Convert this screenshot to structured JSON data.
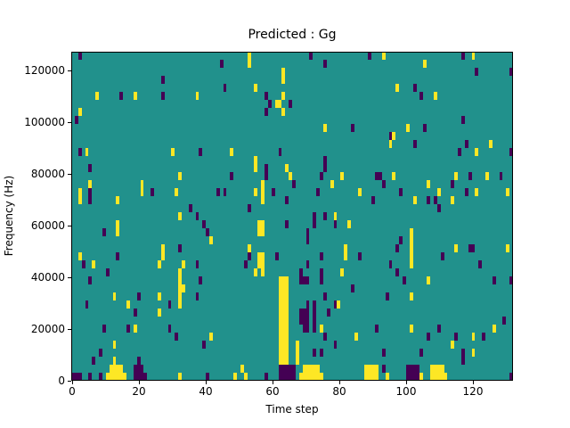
{
  "chart_data": {
    "type": "heatmap",
    "title": "Predicted : Gg",
    "xlabel": "Time step",
    "ylabel": "Frequency (Hz)",
    "x_ticks": [
      0,
      20,
      40,
      60,
      80,
      100,
      120
    ],
    "y_ticks": [
      0,
      20000,
      40000,
      60000,
      80000,
      100000,
      120000
    ],
    "xlim": [
      0,
      132
    ],
    "ylim": [
      0,
      128000
    ],
    "grid": {
      "cols": 128,
      "rows": 41
    },
    "legend": "none",
    "colors": {
      "background": "#21918c",
      "high": "#fde725",
      "low": "#440154",
      "text": "#000000",
      "figure_background": "#ffffff"
    },
    "yellow_cells": [
      [
        7,
        5
      ],
      [
        18,
        5
      ],
      [
        36,
        5
      ],
      [
        2,
        7
      ],
      [
        4,
        12
      ],
      [
        29,
        12
      ],
      [
        51,
        0
      ],
      [
        51,
        1
      ],
      [
        61,
        2
      ],
      [
        61,
        3
      ],
      [
        53,
        4
      ],
      [
        61,
        5
      ],
      [
        59,
        6
      ],
      [
        60,
        6
      ],
      [
        61,
        7
      ],
      [
        73,
        9
      ],
      [
        46,
        12
      ],
      [
        53,
        13
      ],
      [
        90,
        0
      ],
      [
        116,
        0
      ],
      [
        102,
        1
      ],
      [
        94,
        4
      ],
      [
        105,
        5
      ],
      [
        97,
        9
      ],
      [
        93,
        10
      ],
      [
        92,
        11
      ],
      [
        121,
        11
      ],
      [
        117,
        12
      ],
      [
        31,
        15
      ],
      [
        5,
        16
      ],
      [
        20,
        16
      ],
      [
        20,
        17
      ],
      [
        2,
        17
      ],
      [
        2,
        18
      ],
      [
        30,
        17
      ],
      [
        13,
        18
      ],
      [
        31,
        20
      ],
      [
        13,
        21
      ],
      [
        13,
        22
      ],
      [
        40,
        23
      ],
      [
        26,
        24
      ],
      [
        26,
        25
      ],
      [
        2,
        25
      ],
      [
        25,
        26
      ],
      [
        6,
        26
      ],
      [
        32,
        26
      ],
      [
        53,
        14
      ],
      [
        62,
        14
      ],
      [
        63,
        15
      ],
      [
        78,
        15
      ],
      [
        53,
        17
      ],
      [
        83,
        17
      ],
      [
        55,
        16
      ],
      [
        55,
        17
      ],
      [
        55,
        18
      ],
      [
        54,
        21
      ],
      [
        55,
        21
      ],
      [
        54,
        22
      ],
      [
        55,
        22
      ],
      [
        54,
        25
      ],
      [
        55,
        25
      ],
      [
        54,
        26
      ],
      [
        55,
        26
      ],
      [
        75,
        16
      ],
      [
        76,
        20
      ],
      [
        80,
        21
      ],
      [
        51,
        24
      ],
      [
        79,
        24
      ],
      [
        79,
        25
      ],
      [
        93,
        15
      ],
      [
        111,
        15
      ],
      [
        120,
        15
      ],
      [
        103,
        16
      ],
      [
        106,
        17
      ],
      [
        117,
        17
      ],
      [
        126,
        17
      ],
      [
        99,
        18
      ],
      [
        110,
        18
      ],
      [
        98,
        22
      ],
      [
        98,
        23
      ],
      [
        98,
        24
      ],
      [
        98,
        25
      ],
      [
        98,
        26
      ],
      [
        111,
        24
      ],
      [
        126,
        24
      ],
      [
        12,
        30
      ],
      [
        16,
        31
      ],
      [
        18,
        34
      ],
      [
        25,
        30
      ],
      [
        25,
        32
      ],
      [
        31,
        27
      ],
      [
        31,
        28
      ],
      [
        31,
        29
      ],
      [
        31,
        30
      ],
      [
        31,
        31
      ],
      [
        32,
        29
      ],
      [
        40,
        35
      ],
      [
        12,
        36
      ],
      [
        12,
        38
      ],
      [
        11,
        39
      ],
      [
        12,
        39
      ],
      [
        13,
        39
      ],
      [
        14,
        39
      ],
      [
        10,
        40
      ],
      [
        11,
        40
      ],
      [
        12,
        40
      ],
      [
        13,
        40
      ],
      [
        14,
        40
      ],
      [
        15,
        40
      ],
      [
        31,
        40
      ],
      [
        53,
        27
      ],
      [
        55,
        27
      ],
      [
        78,
        27
      ],
      [
        77,
        31
      ],
      [
        72,
        34
      ],
      [
        82,
        35
      ],
      [
        65,
        36
      ],
      [
        65,
        37
      ],
      [
        65,
        38
      ],
      [
        49,
        39
      ],
      [
        47,
        40
      ],
      [
        50,
        40
      ],
      [
        60,
        28
      ],
      [
        61,
        28
      ],
      [
        62,
        28
      ],
      [
        60,
        29
      ],
      [
        61,
        29
      ],
      [
        62,
        29
      ],
      [
        60,
        30
      ],
      [
        61,
        30
      ],
      [
        62,
        30
      ],
      [
        60,
        31
      ],
      [
        61,
        31
      ],
      [
        62,
        31
      ],
      [
        60,
        32
      ],
      [
        61,
        32
      ],
      [
        62,
        32
      ],
      [
        60,
        33
      ],
      [
        61,
        33
      ],
      [
        62,
        33
      ],
      [
        60,
        34
      ],
      [
        61,
        34
      ],
      [
        62,
        34
      ],
      [
        60,
        35
      ],
      [
        61,
        35
      ],
      [
        62,
        35
      ],
      [
        60,
        36
      ],
      [
        61,
        36
      ],
      [
        62,
        36
      ],
      [
        60,
        37
      ],
      [
        61,
        37
      ],
      [
        62,
        37
      ],
      [
        60,
        38
      ],
      [
        61,
        38
      ],
      [
        62,
        38
      ],
      [
        67,
        39
      ],
      [
        68,
        39
      ],
      [
        69,
        39
      ],
      [
        70,
        39
      ],
      [
        71,
        39
      ],
      [
        66,
        40
      ],
      [
        67,
        40
      ],
      [
        68,
        40
      ],
      [
        69,
        40
      ],
      [
        70,
        40
      ],
      [
        71,
        40
      ],
      [
        72,
        40
      ],
      [
        103,
        28
      ],
      [
        98,
        30
      ],
      [
        122,
        34
      ],
      [
        98,
        34
      ],
      [
        116,
        35
      ],
      [
        110,
        36
      ],
      [
        116,
        37
      ],
      [
        85,
        39
      ],
      [
        86,
        39
      ],
      [
        87,
        39
      ],
      [
        88,
        39
      ],
      [
        85,
        40
      ],
      [
        86,
        40
      ],
      [
        87,
        40
      ],
      [
        88,
        40
      ],
      [
        91,
        40
      ],
      [
        101,
        40
      ],
      [
        104,
        39
      ],
      [
        105,
        39
      ],
      [
        106,
        39
      ],
      [
        107,
        39
      ],
      [
        104,
        40
      ],
      [
        105,
        40
      ],
      [
        106,
        40
      ],
      [
        107,
        40
      ],
      [
        108,
        40
      ]
    ],
    "purple_cells": [
      [
        2,
        0
      ],
      [
        26,
        3
      ],
      [
        14,
        5
      ],
      [
        26,
        5
      ],
      [
        1,
        8
      ],
      [
        2,
        12
      ],
      [
        37,
        12
      ],
      [
        43,
        1
      ],
      [
        69,
        0
      ],
      [
        73,
        1
      ],
      [
        44,
        4
      ],
      [
        56,
        5
      ],
      [
        57,
        6
      ],
      [
        63,
        6
      ],
      [
        56,
        7
      ],
      [
        81,
        9
      ],
      [
        60,
        12
      ],
      [
        73,
        13
      ],
      [
        86,
        0
      ],
      [
        113,
        0
      ],
      [
        117,
        2
      ],
      [
        127,
        2
      ],
      [
        99,
        4
      ],
      [
        101,
        5
      ],
      [
        113,
        8
      ],
      [
        102,
        9
      ],
      [
        92,
        10
      ],
      [
        99,
        11
      ],
      [
        114,
        11
      ],
      [
        112,
        12
      ],
      [
        127,
        12
      ],
      [
        5,
        14
      ],
      [
        42,
        17
      ],
      [
        5,
        17
      ],
      [
        5,
        18
      ],
      [
        23,
        17
      ],
      [
        34,
        19
      ],
      [
        36,
        20
      ],
      [
        38,
        21
      ],
      [
        39,
        22
      ],
      [
        9,
        22
      ],
      [
        31,
        24
      ],
      [
        13,
        25
      ],
      [
        3,
        26
      ],
      [
        36,
        26
      ],
      [
        56,
        14
      ],
      [
        73,
        14
      ],
      [
        46,
        15
      ],
      [
        56,
        15
      ],
      [
        72,
        15
      ],
      [
        64,
        16
      ],
      [
        44,
        17
      ],
      [
        58,
        17
      ],
      [
        71,
        17
      ],
      [
        62,
        18
      ],
      [
        51,
        19
      ],
      [
        62,
        21
      ],
      [
        70,
        20
      ],
      [
        70,
        21
      ],
      [
        73,
        20
      ],
      [
        76,
        21
      ],
      [
        68,
        22
      ],
      [
        68,
        23
      ],
      [
        51,
        25
      ],
      [
        59,
        25
      ],
      [
        50,
        26
      ],
      [
        68,
        26
      ],
      [
        72,
        25
      ],
      [
        83,
        25
      ],
      [
        88,
        15
      ],
      [
        89,
        15
      ],
      [
        115,
        15
      ],
      [
        124,
        15
      ],
      [
        90,
        16
      ],
      [
        110,
        16
      ],
      [
        95,
        17
      ],
      [
        114,
        17
      ],
      [
        87,
        18
      ],
      [
        103,
        18
      ],
      [
        105,
        18
      ],
      [
        106,
        19
      ],
      [
        95,
        23
      ],
      [
        94,
        24
      ],
      [
        115,
        24
      ],
      [
        116,
        24
      ],
      [
        107,
        25
      ],
      [
        92,
        26
      ],
      [
        118,
        26
      ],
      [
        10,
        27
      ],
      [
        5,
        28
      ],
      [
        4,
        31
      ],
      [
        19,
        30
      ],
      [
        18,
        32
      ],
      [
        16,
        34
      ],
      [
        9,
        34
      ],
      [
        28,
        31
      ],
      [
        37,
        28
      ],
      [
        36,
        30
      ],
      [
        28,
        34
      ],
      [
        38,
        36
      ],
      [
        8,
        37
      ],
      [
        6,
        38
      ],
      [
        19,
        38
      ],
      [
        30,
        35
      ],
      [
        0,
        40
      ],
      [
        1,
        40
      ],
      [
        2,
        40
      ],
      [
        5,
        40
      ],
      [
        8,
        40
      ],
      [
        18,
        39
      ],
      [
        19,
        39
      ],
      [
        20,
        39
      ],
      [
        18,
        40
      ],
      [
        19,
        40
      ],
      [
        20,
        40
      ],
      [
        21,
        40
      ],
      [
        39,
        40
      ],
      [
        66,
        27
      ],
      [
        72,
        27
      ],
      [
        66,
        28
      ],
      [
        67,
        28
      ],
      [
        68,
        28
      ],
      [
        72,
        28
      ],
      [
        81,
        29
      ],
      [
        73,
        30
      ],
      [
        68,
        31
      ],
      [
        70,
        31
      ],
      [
        76,
        31
      ],
      [
        66,
        32
      ],
      [
        67,
        32
      ],
      [
        68,
        32
      ],
      [
        70,
        32
      ],
      [
        74,
        32
      ],
      [
        66,
        33
      ],
      [
        67,
        33
      ],
      [
        68,
        33
      ],
      [
        70,
        33
      ],
      [
        67,
        34
      ],
      [
        68,
        34
      ],
      [
        70,
        34
      ],
      [
        73,
        35
      ],
      [
        76,
        36
      ],
      [
        70,
        37
      ],
      [
        72,
        37
      ],
      [
        56,
        40
      ],
      [
        60,
        39
      ],
      [
        61,
        39
      ],
      [
        62,
        39
      ],
      [
        63,
        39
      ],
      [
        64,
        39
      ],
      [
        60,
        40
      ],
      [
        61,
        40
      ],
      [
        62,
        40
      ],
      [
        63,
        40
      ],
      [
        64,
        40
      ],
      [
        94,
        27
      ],
      [
        96,
        28
      ],
      [
        122,
        28
      ],
      [
        127,
        28
      ],
      [
        91,
        30
      ],
      [
        125,
        33
      ],
      [
        88,
        34
      ],
      [
        106,
        34
      ],
      [
        103,
        35
      ],
      [
        111,
        35
      ],
      [
        119,
        35
      ],
      [
        90,
        37
      ],
      [
        101,
        37
      ],
      [
        113,
        37
      ],
      [
        113,
        38
      ],
      [
        90,
        39
      ],
      [
        127,
        40
      ],
      [
        97,
        39
      ],
      [
        98,
        39
      ],
      [
        99,
        39
      ],
      [
        100,
        39
      ],
      [
        97,
        40
      ],
      [
        98,
        40
      ],
      [
        99,
        40
      ],
      [
        100,
        40
      ]
    ]
  }
}
